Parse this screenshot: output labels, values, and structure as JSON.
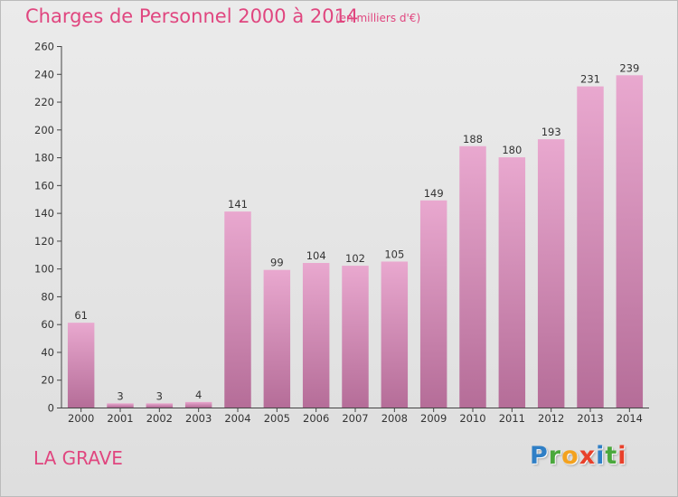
{
  "header": {
    "title": "Charges de Personnel 2000 à 2014",
    "subtitle": "(en milliers d'€)"
  },
  "footer": {
    "location": "LA GRAVE",
    "brand": "Proxiti"
  },
  "colors": {
    "title": "#e0467f",
    "bar_top": "#e9a8cf",
    "bar_bottom": "#b56d98",
    "axis": "#444444"
  },
  "chart_data": {
    "type": "bar",
    "categories": [
      "2000",
      "2001",
      "2002",
      "2003",
      "2004",
      "2005",
      "2006",
      "2007",
      "2008",
      "2009",
      "2010",
      "2011",
      "2012",
      "2013",
      "2014"
    ],
    "values": [
      61,
      3,
      3,
      4,
      141,
      99,
      104,
      102,
      105,
      149,
      188,
      180,
      193,
      231,
      239
    ],
    "title": "Charges de Personnel 2000 à 2014",
    "subtitle": "(en milliers d'€)",
    "ylim": [
      0,
      260
    ],
    "yticks": [
      0,
      20,
      40,
      60,
      80,
      100,
      120,
      140,
      160,
      180,
      200,
      220,
      240,
      260
    ],
    "grid": false,
    "data_labels": true
  }
}
